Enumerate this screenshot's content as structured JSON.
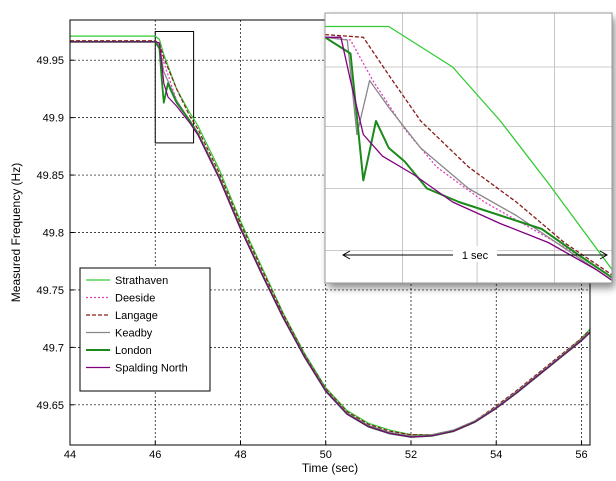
{
  "chart_data": {
    "type": "line",
    "title": "",
    "xlabel": "Time (sec)",
    "ylabel": "Measured Frequency (Hz)",
    "xlim": [
      44,
      56.2
    ],
    "ylim": [
      49.615,
      49.985
    ],
    "x_ticks": [
      44,
      46,
      48,
      50,
      52,
      54,
      56
    ],
    "y_ticks": [
      49.65,
      49.7,
      49.75,
      49.8,
      49.85,
      49.9,
      49.95
    ],
    "grid": true,
    "legend_position": "bottom-left",
    "series": [
      {
        "name": "Strathaven",
        "color": "#33cc33",
        "style": "solid",
        "x": [
          44,
          45,
          46,
          46.1,
          46.2,
          46.5,
          46.8,
          47,
          47.5,
          48,
          48.5,
          49,
          49.5,
          50,
          50.5,
          51,
          51.5,
          52,
          52.5,
          53,
          53.5,
          54,
          54.5,
          55,
          55.5,
          56,
          56.2
        ],
        "y": [
          49.971,
          49.971,
          49.971,
          49.968,
          49.955,
          49.925,
          49.905,
          49.893,
          49.855,
          49.81,
          49.77,
          49.73,
          49.695,
          49.665,
          49.645,
          49.634,
          49.628,
          49.624,
          49.624,
          49.628,
          49.635,
          49.648,
          49.662,
          49.677,
          49.692,
          49.708,
          49.716
        ]
      },
      {
        "name": "Deeside",
        "color": "#e040c0",
        "style": "dotted",
        "x": [
          44,
          45,
          46,
          46.1,
          46.2,
          46.5,
          46.8,
          47,
          47.5,
          48,
          48.5,
          49,
          49.5,
          50,
          50.5,
          51,
          51.5,
          52,
          52.5,
          53,
          53.5,
          54,
          54.5,
          55,
          55.5,
          56,
          56.2
        ],
        "y": [
          49.966,
          49.966,
          49.966,
          49.963,
          49.948,
          49.915,
          49.898,
          49.887,
          49.849,
          49.805,
          49.765,
          49.727,
          49.693,
          49.663,
          49.643,
          49.632,
          49.626,
          49.623,
          49.624,
          49.628,
          49.636,
          49.648,
          49.662,
          49.677,
          49.692,
          49.707,
          49.714
        ]
      },
      {
        "name": "Langage",
        "color": "#8b1a1a",
        "style": "dashed",
        "x": [
          44,
          45,
          46,
          46.1,
          46.2,
          46.5,
          46.8,
          47,
          47.5,
          48,
          48.5,
          49,
          49.5,
          50,
          50.5,
          51,
          51.5,
          52,
          52.5,
          53,
          53.5,
          54,
          54.5,
          55,
          55.5,
          56,
          56.2
        ],
        "y": [
          49.967,
          49.967,
          49.967,
          49.964,
          49.952,
          49.925,
          49.902,
          49.89,
          49.852,
          49.808,
          49.768,
          49.729,
          49.694,
          49.664,
          49.644,
          49.633,
          49.627,
          49.624,
          49.624,
          49.628,
          49.636,
          49.649,
          49.663,
          49.678,
          49.693,
          49.708,
          49.715
        ]
      },
      {
        "name": "Keadby",
        "color": "#888888",
        "style": "solid",
        "x": [
          44,
          45,
          46,
          46.1,
          46.2,
          46.5,
          46.8,
          47,
          47.5,
          48,
          48.5,
          49,
          49.5,
          50,
          50.5,
          51,
          51.5,
          52,
          52.5,
          53,
          53.5,
          54,
          54.5,
          55,
          55.5,
          56,
          56.2
        ],
        "y": [
          49.966,
          49.966,
          49.966,
          49.962,
          49.94,
          49.915,
          49.898,
          49.886,
          49.848,
          49.805,
          49.765,
          49.727,
          49.693,
          49.663,
          49.643,
          49.632,
          49.626,
          49.623,
          49.624,
          49.628,
          49.636,
          49.648,
          49.662,
          49.677,
          49.692,
          49.707,
          49.714
        ]
      },
      {
        "name": "London",
        "color": "#1a8a1a",
        "style": "solid",
        "x": [
          44,
          45,
          46,
          46.1,
          46.15,
          46.2,
          46.3,
          46.35,
          46.5,
          46.8,
          47,
          47.5,
          48,
          48.5,
          49,
          49.5,
          50,
          50.5,
          51,
          51.5,
          52,
          52.5,
          53,
          53.5,
          54,
          54.5,
          55,
          55.5,
          56,
          56.2
        ],
        "y": [
          49.966,
          49.966,
          49.966,
          49.96,
          49.935,
          49.913,
          49.93,
          49.925,
          49.913,
          49.898,
          49.886,
          49.848,
          49.804,
          49.764,
          49.726,
          49.692,
          49.662,
          49.642,
          49.631,
          49.625,
          49.622,
          49.623,
          49.627,
          49.635,
          49.647,
          49.661,
          49.676,
          49.691,
          49.706,
          49.713
        ]
      },
      {
        "name": "Spalding North",
        "color": "#800080",
        "style": "solid",
        "x": [
          44,
          45,
          46,
          46.1,
          46.2,
          46.3,
          46.5,
          46.8,
          47,
          47.5,
          48,
          48.5,
          49,
          49.5,
          50,
          50.5,
          51,
          51.5,
          52,
          52.5,
          53,
          53.5,
          54,
          54.5,
          55,
          55.5,
          56,
          56.2
        ],
        "y": [
          49.966,
          49.966,
          49.966,
          49.965,
          49.93,
          49.918,
          49.91,
          49.896,
          49.885,
          49.847,
          49.803,
          49.764,
          49.726,
          49.692,
          49.662,
          49.642,
          49.631,
          49.625,
          49.622,
          49.623,
          49.627,
          49.635,
          49.647,
          49.661,
          49.676,
          49.691,
          49.706,
          49.713
        ]
      }
    ],
    "inset": {
      "range_label": "1 sec",
      "xlim": [
        46,
        46.9
      ],
      "ylim": [
        49.875,
        49.975
      ],
      "source_box": {
        "x": [
          46.0,
          46.9
        ],
        "y": [
          49.878,
          49.975
        ]
      },
      "series": [
        {
          "name": "Strathaven",
          "x": [
            46,
            46.2,
            46.4,
            46.55,
            46.7,
            46.9
          ],
          "y": [
            49.97,
            49.97,
            49.955,
            49.935,
            49.912,
            49.88
          ]
        },
        {
          "name": "Deeside",
          "x": [
            46,
            46.08,
            46.15,
            46.25,
            46.35,
            46.5,
            46.65,
            46.8,
            46.9
          ],
          "y": [
            49.966,
            49.965,
            49.95,
            49.932,
            49.918,
            49.905,
            49.895,
            49.885,
            49.877
          ]
        },
        {
          "name": "Langage",
          "x": [
            46,
            46.12,
            46.2,
            46.3,
            46.45,
            46.6,
            46.75,
            46.9
          ],
          "y": [
            49.967,
            49.966,
            49.952,
            49.935,
            49.918,
            49.905,
            49.89,
            49.878
          ]
        },
        {
          "name": "Keadby",
          "x": [
            46,
            46.07,
            46.1,
            46.14,
            46.2,
            46.3,
            46.45,
            46.6,
            46.75,
            46.9
          ],
          "y": [
            49.966,
            49.965,
            49.93,
            49.95,
            49.94,
            49.925,
            49.91,
            49.9,
            49.888,
            49.876
          ]
        },
        {
          "name": "London",
          "x": [
            46,
            46.08,
            46.12,
            46.16,
            46.2,
            46.25,
            46.32,
            46.42,
            46.55,
            46.68,
            46.8,
            46.9
          ],
          "y": [
            49.966,
            49.96,
            49.913,
            49.935,
            49.925,
            49.92,
            49.91,
            49.905,
            49.9,
            49.895,
            49.885,
            49.877
          ]
        },
        {
          "name": "Spalding North",
          "x": [
            46,
            46.05,
            46.08,
            46.12,
            46.18,
            46.28,
            46.4,
            46.55,
            46.7,
            46.85,
            46.9
          ],
          "y": [
            49.966,
            49.966,
            49.95,
            49.93,
            49.922,
            49.915,
            49.905,
            49.897,
            49.89,
            49.88,
            49.876
          ]
        }
      ]
    }
  }
}
